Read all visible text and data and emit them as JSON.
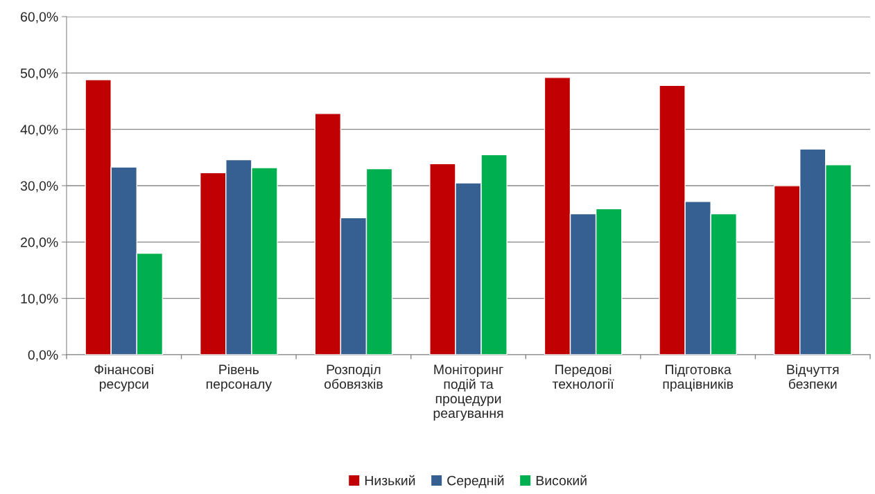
{
  "chart_data": {
    "type": "bar",
    "categories": [
      "Фінансові\nресурси",
      "Рівень\nперсоналу",
      "Розподіл\nобовязків",
      "Моніторинг\nподій та\nпроцедури\nреагування",
      "Передові\nтехнології",
      "Підготовка\nпрацівників",
      "Відчуття\nбезпеки"
    ],
    "series": [
      {
        "name": "Низький",
        "color": "#c00000",
        "values": [
          48.8,
          32.3,
          42.8,
          33.9,
          49.2,
          47.8,
          30.0
        ]
      },
      {
        "name": "Середній",
        "color": "#376092",
        "values": [
          33.3,
          34.6,
          24.3,
          30.5,
          25.0,
          27.2,
          36.5
        ]
      },
      {
        "name": "Високий",
        "color": "#00b050",
        "values": [
          18.0,
          33.2,
          33.0,
          35.5,
          25.9,
          25.0,
          33.7
        ]
      }
    ],
    "ylim": [
      0,
      60
    ],
    "yticks": [
      {
        "value": 0,
        "label": "0,0%"
      },
      {
        "value": 10,
        "label": "10,0%"
      },
      {
        "value": 20,
        "label": "20,0%"
      },
      {
        "value": 30,
        "label": "30,0%"
      },
      {
        "value": 40,
        "label": "40,0%"
      },
      {
        "value": 50,
        "label": "50,0%"
      },
      {
        "value": 60,
        "label": "60,0%"
      }
    ],
    "grid": "y",
    "legend": "bottom"
  }
}
